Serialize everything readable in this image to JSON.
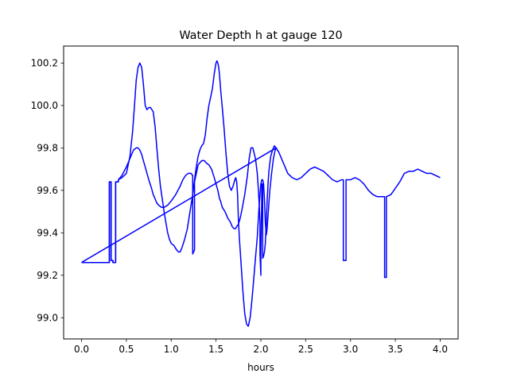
{
  "chart_data": {
    "type": "line",
    "title": "Water Depth h at gauge 120",
    "xlabel": "hours",
    "ylabel": "",
    "xlim": [
      -0.2,
      4.2
    ],
    "ylim": [
      98.9,
      100.28
    ],
    "x_ticks": [
      0.0,
      0.5,
      1.0,
      1.5,
      2.0,
      2.5,
      3.0,
      3.5,
      4.0
    ],
    "x_tick_labels": [
      "0.0",
      "0.5",
      "1.0",
      "1.5",
      "2.0",
      "2.5",
      "3.0",
      "3.5",
      "4.0"
    ],
    "y_ticks": [
      99.0,
      99.2,
      99.4,
      99.6,
      99.8,
      100.0,
      100.2
    ],
    "y_tick_labels": [
      "99.0",
      "99.2",
      "99.4",
      "99.6",
      "99.8",
      "100.0",
      "100.2"
    ],
    "grid": false,
    "legend": "none",
    "line_color": "#0000ff",
    "series": [
      {
        "x": [
          0.0,
          0.3,
          0.31,
          0.31,
          0.33,
          0.33,
          0.35,
          0.35,
          0.38,
          0.38,
          0.41,
          0.41,
          0.45,
          0.5,
          0.55,
          0.58,
          0.61,
          0.63,
          0.65,
          0.67,
          0.69,
          0.71,
          0.73,
          0.75,
          0.78,
          0.8,
          0.82,
          0.84,
          0.86,
          0.89,
          0.92,
          0.96,
          1.0,
          1.05,
          1.1,
          1.13,
          1.16,
          1.19,
          1.22,
          1.24,
          1.24,
          1.26,
          1.26,
          1.29,
          1.3,
          1.32,
          1.34,
          1.37,
          1.39,
          1.42,
          1.45,
          1.48,
          1.5,
          1.52,
          1.53,
          1.54,
          1.55,
          1.57,
          1.6,
          1.63,
          1.66,
          1.68,
          1.7,
          1.71,
          1.72,
          1.73,
          1.75,
          1.77,
          1.79,
          1.82,
          1.85,
          1.87,
          1.89,
          1.91,
          1.94,
          1.96,
          1.97,
          1.98,
          1.99,
          1.99,
          2.0,
          2.0,
          2.01,
          2.01,
          2.02,
          2.02,
          2.03,
          2.04,
          2.05,
          2.06,
          2.07,
          2.08,
          2.09,
          2.1,
          2.11,
          2.13,
          2.15,
          2.17,
          2.2,
          2.25,
          2.3,
          2.35,
          2.4,
          2.45,
          2.5,
          2.55,
          2.6,
          2.65,
          2.7,
          2.75,
          2.8,
          2.85,
          2.9,
          2.92,
          2.92,
          2.95,
          2.95,
          3.0,
          3.05,
          3.1,
          3.15,
          3.2,
          3.25,
          3.3,
          3.35,
          3.38,
          3.38,
          3.4,
          3.4,
          3.45,
          3.5,
          3.55,
          3.6,
          3.65,
          3.7,
          3.75,
          3.8,
          3.85,
          3.9,
          3.95,
          4.0
        ],
        "y": [
          99.26,
          99.26,
          99.26,
          99.64,
          99.64,
          99.27,
          99.27,
          99.26,
          99.26,
          99.64,
          99.64,
          99.65,
          99.67,
          99.71,
          99.76,
          99.79,
          99.8,
          99.8,
          99.79,
          99.77,
          99.74,
          99.71,
          99.68,
          99.65,
          99.61,
          99.58,
          99.56,
          99.54,
          99.53,
          99.52,
          99.52,
          99.53,
          99.55,
          99.58,
          99.62,
          99.65,
          99.67,
          99.68,
          99.68,
          99.67,
          99.3,
          99.32,
          99.64,
          99.7,
          99.72,
          99.73,
          99.74,
          99.74,
          99.73,
          99.72,
          99.7,
          99.66,
          99.63,
          99.6,
          99.58,
          99.56,
          99.55,
          99.52,
          99.5,
          99.47,
          99.45,
          99.43,
          99.42,
          99.42,
          99.42,
          99.43,
          99.44,
          99.47,
          99.51,
          99.58,
          99.67,
          99.75,
          99.8,
          99.8,
          99.75,
          99.68,
          99.62,
          99.55,
          99.45,
          99.3,
          99.2,
          99.3,
          99.55,
          99.63,
          99.63,
          99.28,
          99.29,
          99.31,
          99.35,
          99.45,
          99.55,
          99.63,
          99.69,
          99.73,
          99.76,
          99.79,
          99.81,
          99.8,
          99.78,
          99.73,
          99.68,
          99.66,
          99.65,
          99.66,
          99.68,
          99.7,
          99.71,
          99.7,
          99.69,
          99.67,
          99.65,
          99.64,
          99.65,
          99.65,
          99.27,
          99.27,
          99.65,
          99.65,
          99.66,
          99.65,
          99.63,
          99.6,
          99.58,
          99.57,
          99.57,
          99.57,
          99.19,
          99.19,
          99.57,
          99.58,
          99.61,
          99.64,
          99.68,
          99.69,
          99.69,
          99.7,
          99.69,
          99.68,
          99.68,
          99.67,
          99.66
        ]
      },
      {
        "x": [
          0.0,
          0.3,
          0.31,
          0.31,
          0.33,
          0.33,
          0.35,
          0.35,
          0.38,
          0.38,
          0.41,
          0.41,
          0.45,
          0.5,
          0.54,
          0.57,
          0.59,
          0.61,
          0.63,
          0.65,
          0.67,
          0.69,
          0.71,
          0.73,
          0.75,
          0.77,
          0.8,
          0.82,
          0.84,
          0.86,
          0.88,
          0.9,
          0.92,
          0.94,
          0.96,
          0.98,
          1.0,
          1.03,
          1.06,
          1.08,
          1.1,
          1.12,
          1.15,
          1.18,
          1.21,
          1.24,
          1.26,
          1.28,
          1.3,
          1.32,
          1.34,
          1.36,
          1.38,
          1.4,
          1.42,
          1.44,
          1.46,
          1.48,
          1.5,
          1.51,
          1.52,
          1.53,
          1.54,
          1.55,
          1.57,
          1.59,
          1.61,
          1.63,
          1.65,
          1.67,
          1.69,
          1.71,
          1.72,
          1.73,
          1.74,
          1.75,
          1.76,
          1.78,
          1.8,
          1.82,
          1.84,
          1.86,
          1.88,
          1.9,
          1.92,
          1.94,
          1.96,
          1.97,
          1.98,
          1.99,
          2.0,
          2.01,
          2.02,
          2.03,
          2.04,
          2.05,
          2.06,
          2.07,
          2.08,
          2.09,
          2.1,
          2.12,
          2.14,
          2.16,
          2.17,
          0.0
        ],
        "y": [
          99.26,
          99.26,
          99.26,
          99.64,
          99.64,
          99.27,
          99.27,
          99.26,
          99.26,
          99.64,
          99.64,
          99.65,
          99.66,
          99.68,
          99.76,
          99.88,
          100.0,
          100.12,
          100.18,
          100.2,
          100.18,
          100.1,
          100.0,
          99.98,
          99.99,
          99.99,
          99.97,
          99.9,
          99.8,
          99.7,
          99.62,
          99.56,
          99.5,
          99.45,
          99.4,
          99.37,
          99.35,
          99.34,
          99.32,
          99.31,
          99.31,
          99.33,
          99.37,
          99.42,
          99.5,
          99.58,
          99.65,
          99.71,
          99.76,
          99.79,
          99.81,
          99.82,
          99.86,
          99.94,
          100.0,
          100.04,
          100.08,
          100.15,
          100.2,
          100.21,
          100.2,
          100.18,
          100.14,
          100.08,
          99.99,
          99.89,
          99.78,
          99.68,
          99.62,
          99.6,
          99.62,
          99.65,
          99.66,
          99.64,
          99.58,
          99.46,
          99.38,
          99.25,
          99.12,
          99.02,
          98.97,
          98.96,
          99.0,
          99.08,
          99.18,
          99.28,
          99.38,
          99.45,
          99.52,
          99.58,
          99.63,
          99.65,
          99.65,
          99.63,
          99.56,
          99.45,
          99.39,
          99.42,
          99.48,
          99.54,
          99.6,
          99.68,
          99.75,
          99.79,
          99.8,
          99.26
        ]
      }
    ]
  }
}
